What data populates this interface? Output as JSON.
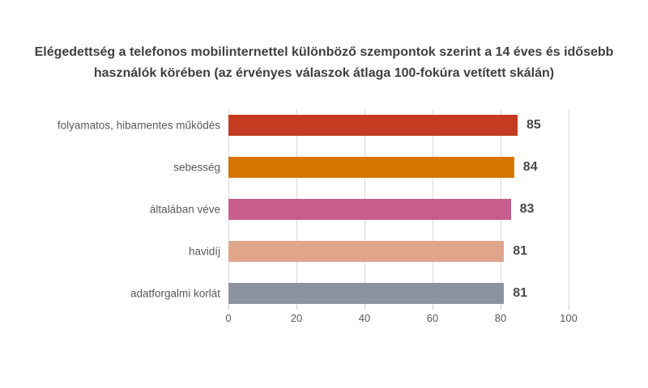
{
  "page": {
    "background": "#FFFFFF"
  },
  "title": {
    "text": "Elégedettség a telefonos mobilinternettel különböző szempontok szerint a 14 éves és idősebb használók körében (az érvényes válaszok átlaga 100-fokúra vetített skálán)",
    "color": "#404040"
  },
  "chart_data": {
    "type": "bar",
    "orientation": "horizontal",
    "title": "Elégedettség a telefonos mobilinternettel különböző szempontok szerint a 14 éves és idősebb használók körében (az érvényes válaszok átlaga 100-fokúra vetített skálán)",
    "categories": [
      "folyamatos, hibamentes működés",
      "sebesség",
      "általában véve",
      "havidíj",
      "adatforgalmi korlát"
    ],
    "values": [
      85,
      84,
      83,
      81,
      81
    ],
    "value_labels": [
      "85",
      "84",
      "83",
      "81",
      "81"
    ],
    "bar_colors": [
      "#C43B22",
      "#D47500",
      "#C85E8E",
      "#DFA68C",
      "#8C92A0"
    ],
    "xlabel": "",
    "ylabel": "",
    "xlim": [
      0,
      100
    ],
    "xticks": [
      0,
      20,
      40,
      60,
      80,
      100
    ],
    "xtick_labels": [
      "0",
      "20",
      "40",
      "60",
      "80",
      "100"
    ],
    "grid": "vertical",
    "gridline_color": "#D9D9D9",
    "tick_label_color": "#595959",
    "category_label_color": "#595959",
    "value_label_color": "#4A4A4A",
    "legend": "none"
  }
}
